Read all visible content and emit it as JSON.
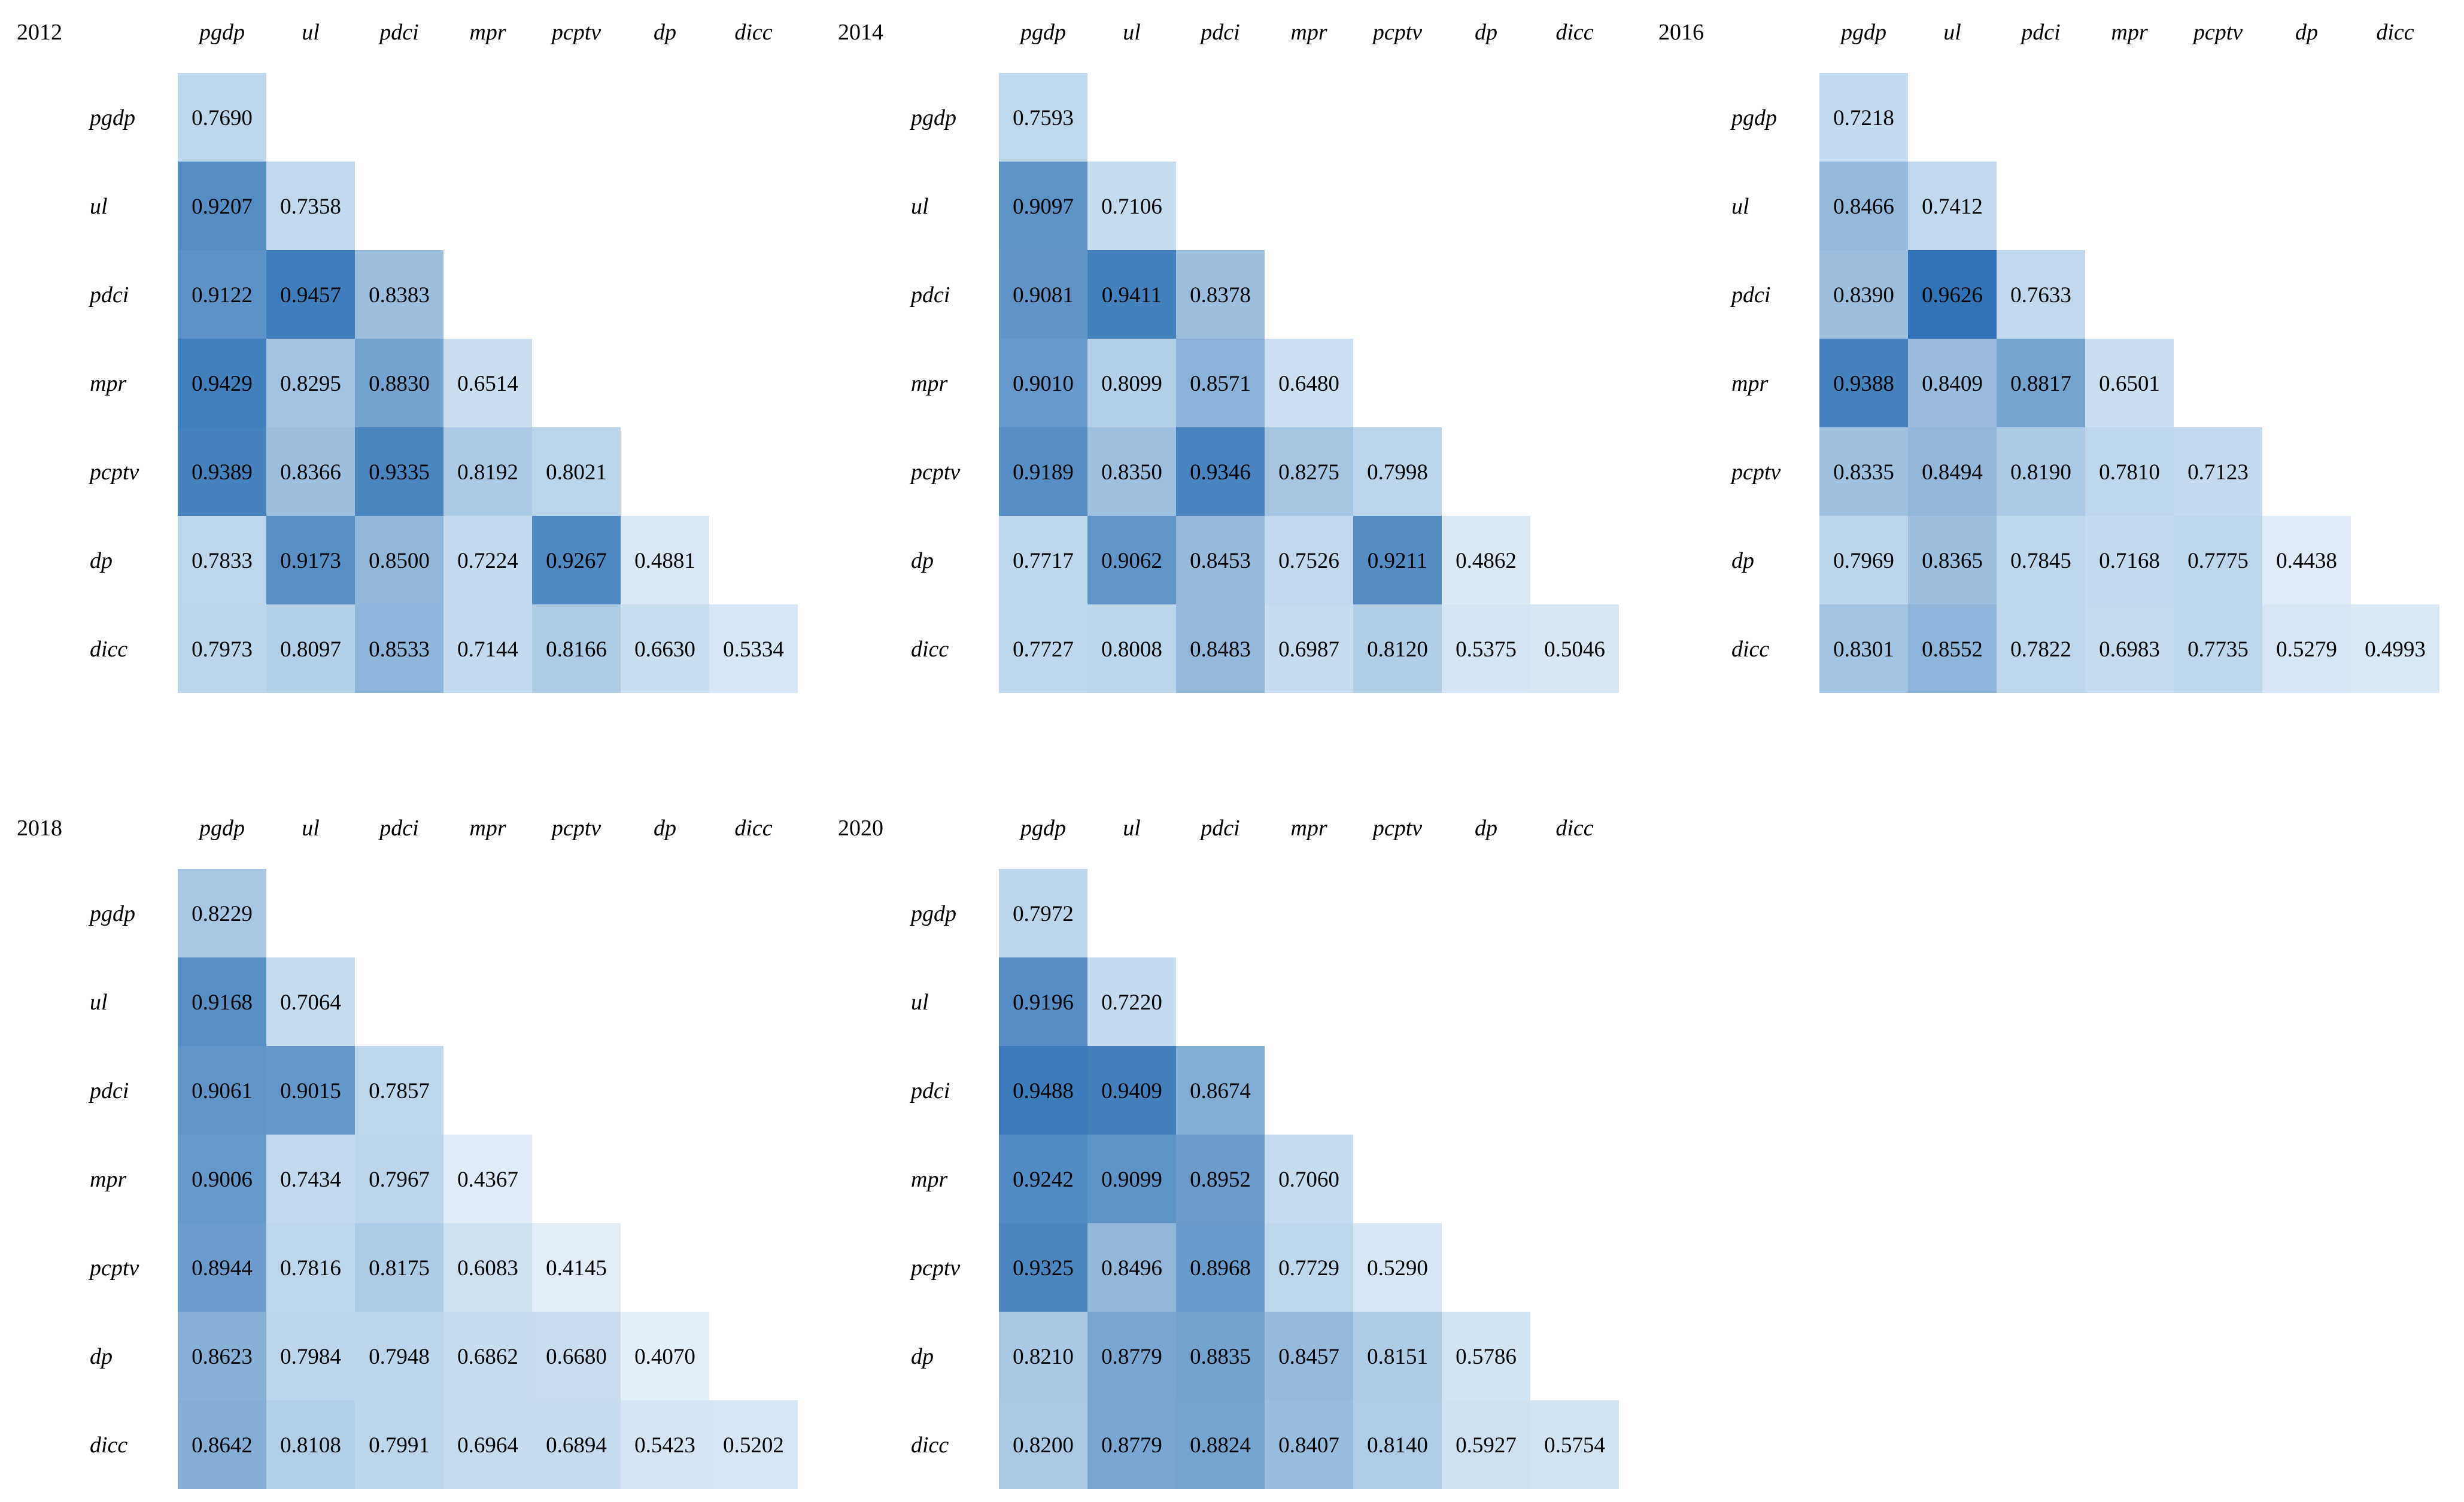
{
  "chart_data": [
    {
      "type": "heatmap",
      "title": "2012",
      "variables": [
        "pgdp",
        "ul",
        "pdci",
        "mpr",
        "pcptv",
        "dp",
        "dicc"
      ],
      "values": [
        [
          0.769
        ],
        [
          0.9207,
          0.7358
        ],
        [
          0.9122,
          0.9457,
          0.8383
        ],
        [
          0.9429,
          0.8295,
          0.883,
          0.6514
        ],
        [
          0.9389,
          0.8366,
          0.9335,
          0.8192,
          0.8021
        ],
        [
          0.7833,
          0.9173,
          0.85,
          0.7224,
          0.9267,
          0.4881
        ],
        [
          0.7973,
          0.8097,
          0.8533,
          0.7144,
          0.8166,
          0.663,
          0.5334
        ]
      ]
    },
    {
      "type": "heatmap",
      "title": "2014",
      "variables": [
        "pgdp",
        "ul",
        "pdci",
        "mpr",
        "pcptv",
        "dp",
        "dicc"
      ],
      "values": [
        [
          0.7593
        ],
        [
          0.9097,
          0.7106
        ],
        [
          0.9081,
          0.9411,
          0.8378
        ],
        [
          0.901,
          0.8099,
          0.8571,
          0.648
        ],
        [
          0.9189,
          0.835,
          0.9346,
          0.8275,
          0.7998
        ],
        [
          0.7717,
          0.9062,
          0.8453,
          0.7526,
          0.9211,
          0.4862
        ],
        [
          0.7727,
          0.8008,
          0.8483,
          0.6987,
          0.812,
          0.5375,
          0.5046
        ]
      ]
    },
    {
      "type": "heatmap",
      "title": "2016",
      "variables": [
        "pgdp",
        "ul",
        "pdci",
        "mpr",
        "pcptv",
        "dp",
        "dicc"
      ],
      "values": [
        [
          0.7218
        ],
        [
          0.8466,
          0.7412
        ],
        [
          0.839,
          0.9626,
          0.7633
        ],
        [
          0.9388,
          0.8409,
          0.8817,
          0.6501
        ],
        [
          0.8335,
          0.8494,
          0.819,
          0.781,
          0.7123
        ],
        [
          0.7969,
          0.8365,
          0.7845,
          0.7168,
          0.7775,
          0.4438
        ],
        [
          0.8301,
          0.8552,
          0.7822,
          0.6983,
          0.7735,
          0.5279,
          0.4993
        ]
      ]
    },
    {
      "type": "heatmap",
      "title": "2018",
      "variables": [
        "pgdp",
        "ul",
        "pdci",
        "mpr",
        "pcptv",
        "dp",
        "dicc"
      ],
      "values": [
        [
          0.8229
        ],
        [
          0.9168,
          0.7064
        ],
        [
          0.9061,
          0.9015,
          0.7857
        ],
        [
          0.9006,
          0.7434,
          0.7967,
          0.4367
        ],
        [
          0.8944,
          0.7816,
          0.8175,
          0.6083,
          0.4145
        ],
        [
          0.8623,
          0.7984,
          0.7948,
          0.6862,
          0.668,
          0.407
        ],
        [
          0.8642,
          0.8108,
          0.7991,
          0.6964,
          0.6894,
          0.5423,
          0.5202
        ]
      ]
    },
    {
      "type": "heatmap",
      "title": "2020",
      "variables": [
        "pgdp",
        "ul",
        "pdci",
        "mpr",
        "pcptv",
        "dp",
        "dicc"
      ],
      "values": [
        [
          0.7972
        ],
        [
          0.9196,
          0.722
        ],
        [
          0.9488,
          0.9409,
          0.8674
        ],
        [
          0.9242,
          0.9099,
          0.8952,
          0.706
        ],
        [
          0.9325,
          0.8496,
          0.8968,
          0.7729,
          0.529
        ],
        [
          0.821,
          0.8779,
          0.8835,
          0.8457,
          0.8151,
          0.5786
        ],
        [
          0.82,
          0.8779,
          0.8824,
          0.8407,
          0.814,
          0.5927,
          0.5754
        ]
      ]
    }
  ],
  "colors": {
    "low": "#e3eef8",
    "mid": "#bcd5eb",
    "high": "#2f72b6"
  }
}
